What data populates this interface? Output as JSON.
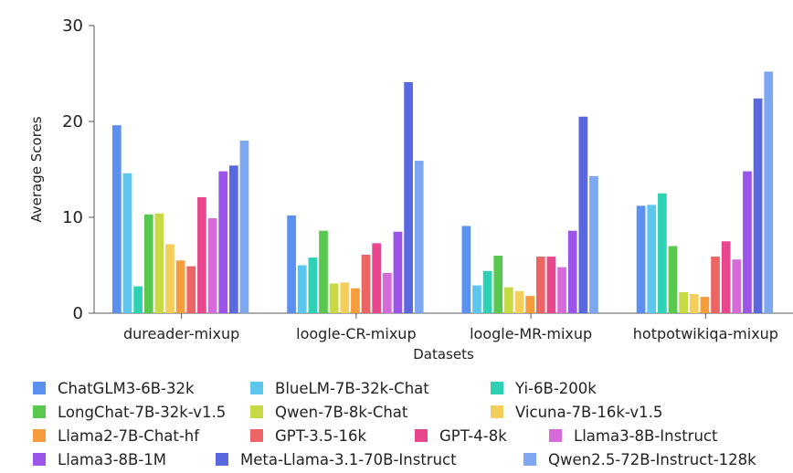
{
  "chart_data": {
    "type": "bar",
    "xlabel": "Datasets",
    "ylabel": "Average Scores",
    "ylim": [
      0,
      30
    ],
    "yticks": [
      0,
      10,
      20,
      30
    ],
    "grid": false,
    "legend_position": "bottom",
    "categories": [
      "dureader-mixup",
      "loogle-CR-mixup",
      "loogle-MR-mixup",
      "hotpotwikiqa-mixup"
    ],
    "series": [
      {
        "name": "ChatGLM3-6B-32k",
        "color": "#5b8ff0",
        "values": [
          19.6,
          10.2,
          9.1,
          11.2
        ]
      },
      {
        "name": "BlueLM-7B-32k-Chat",
        "color": "#5cc6ee",
        "values": [
          14.6,
          5.0,
          2.9,
          11.3
        ]
      },
      {
        "name": "Yi-6B-200k",
        "color": "#2fd1b4",
        "values": [
          2.8,
          5.8,
          4.4,
          12.5
        ]
      },
      {
        "name": "LongChat-7B-32k-v1.5",
        "color": "#58c84f",
        "values": [
          10.3,
          8.6,
          6.0,
          7.0
        ]
      },
      {
        "name": "Qwen-7B-8k-Chat",
        "color": "#c7d945",
        "values": [
          10.4,
          3.1,
          2.7,
          2.2
        ]
      },
      {
        "name": "Vicuna-7B-16k-v1.5",
        "color": "#f3ce5a",
        "values": [
          7.2,
          3.2,
          2.3,
          2.0
        ]
      },
      {
        "name": "Llama2-7B-Chat-hf",
        "color": "#f59c3c",
        "values": [
          5.5,
          2.6,
          1.8,
          1.7
        ]
      },
      {
        "name": "GPT-3.5-16k",
        "color": "#ec6464",
        "values": [
          4.9,
          6.1,
          5.9,
          5.9
        ]
      },
      {
        "name": "GPT-4-8k",
        "color": "#e8468d",
        "values": [
          12.1,
          7.3,
          5.9,
          7.5
        ]
      },
      {
        "name": "Llama3-8B-Instruct",
        "color": "#d56ad8",
        "values": [
          9.9,
          4.2,
          4.8,
          5.6
        ]
      },
      {
        "name": "Llama3-8B-1M",
        "color": "#9b55ea",
        "values": [
          14.8,
          8.5,
          8.6,
          14.8
        ]
      },
      {
        "name": "Meta-Llama-3.1-70B-Instruct",
        "color": "#5a68e0",
        "values": [
          15.4,
          24.1,
          20.5,
          22.4
        ]
      },
      {
        "name": "Qwen2.5-72B-Instruct-128k",
        "color": "#7ea7f2",
        "values": [
          18.0,
          15.9,
          14.3,
          25.2
        ]
      }
    ]
  }
}
